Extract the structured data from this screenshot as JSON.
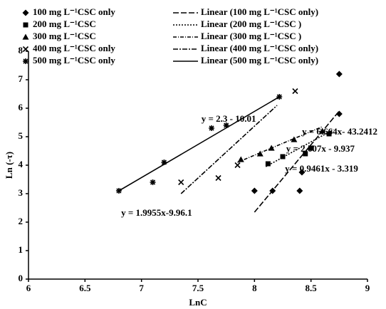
{
  "chart_data": {
    "type": "scatter",
    "xlabel": "LnC",
    "ylabel": "Ln (-τ)",
    "xlim": [
      6,
      9
    ],
    "ylim": [
      0,
      8
    ],
    "xticks": [
      6,
      6.5,
      7,
      7.5,
      8,
      8.5,
      9
    ],
    "yticks": [
      0,
      1,
      2,
      3,
      4,
      5,
      6,
      7,
      8
    ],
    "grid": false,
    "series": [
      {
        "name": "100 mg L⁻¹CSC only",
        "marker": "diamond",
        "color": "#000000",
        "trend_name": "Linear (100 mg L⁻¹CSC only)",
        "trend_dash": "8 3",
        "x": [
          8.0,
          8.16,
          8.4,
          8.42,
          8.75,
          8.75
        ],
        "y": [
          3.1,
          3.1,
          3.1,
          3.75,
          7.2,
          5.8
        ],
        "trend_x": [
          8.0,
          8.75
        ],
        "trend_y": [
          2.35,
          5.9
        ]
      },
      {
        "name": "200 mg L⁻¹CSC",
        "marker": "square",
        "color": "#000000",
        "trend_name": "Linear (200 mg L⁻¹CSC )",
        "trend_dash": "2 2",
        "x": [
          8.12,
          8.25,
          8.45,
          8.5,
          8.66
        ],
        "y": [
          4.05,
          4.3,
          4.4,
          4.6,
          5.1
        ],
        "trend_x": [
          8.1,
          8.7
        ],
        "trend_y": [
          3.95,
          5.25
        ]
      },
      {
        "name": "300 mg L⁻¹CSC",
        "marker": "triangle",
        "color": "#000000",
        "trend_name": "Linear (300 mg L⁻¹CSC )",
        "trend_dash": "5 2 1 2",
        "x": [
          7.88,
          8.05,
          8.15,
          8.35,
          8.6
        ],
        "y": [
          4.2,
          4.4,
          4.6,
          4.9,
          5.2
        ],
        "trend_x": [
          7.85,
          8.6
        ],
        "trend_y": [
          4.1,
          5.35
        ]
      },
      {
        "name": "400 mg L⁻¹CSC only",
        "marker": "x",
        "color": "#000000",
        "trend_name": "Linear (400 mg L⁻¹CSC only)",
        "trend_dash": "7 2 2 2",
        "x": [
          7.35,
          7.68,
          7.85,
          8.36,
          8.5
        ],
        "y": [
          3.4,
          3.55,
          4.0,
          6.6,
          4.6
        ],
        "trend_x": [
          7.35,
          8.2
        ],
        "trend_y": [
          3.0,
          6.1
        ]
      },
      {
        "name": "500 mg L⁻¹CSC only",
        "marker": "star",
        "color": "#000000",
        "trend_name": "Linear (500 mg L⁻¹CSC only)",
        "trend_dash": "",
        "x": [
          6.8,
          7.1,
          7.2,
          7.62,
          7.75,
          8.22
        ],
        "y": [
          3.1,
          3.4,
          4.1,
          5.3,
          5.4,
          6.4
        ],
        "trend_x": [
          6.8,
          8.22
        ],
        "trend_y": [
          3.1,
          6.4
        ]
      }
    ],
    "annotations": [
      "y = 2.3 - 10.01",
      "y = 6.664x- 43.2412",
      "y = 2.607x - 9.937",
      "y = 0.9461x - 3.319",
      "y = 1.9955x-9.96.1"
    ]
  }
}
